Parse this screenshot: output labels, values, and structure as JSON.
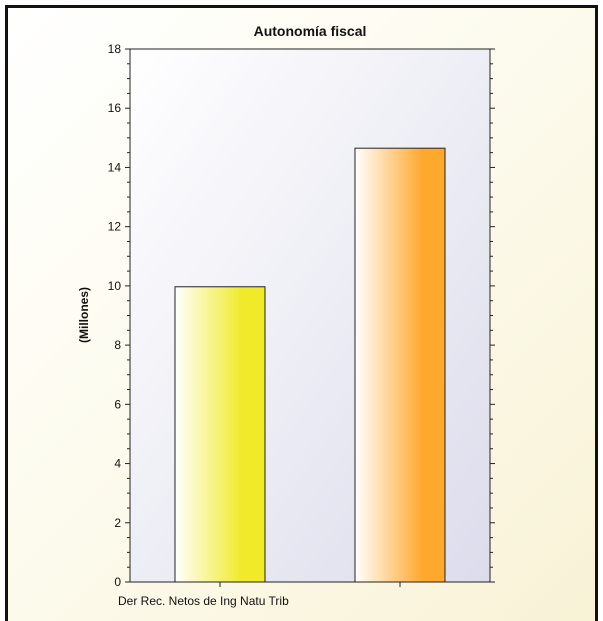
{
  "chart_data": {
    "type": "bar",
    "title": "Autonomía fiscal",
    "xlabel": "",
    "ylabel": "(Millones)",
    "categories": [
      "Der Rec. Netos de Ing Natu Trib",
      ""
    ],
    "values": [
      9.97,
      14.65
    ],
    "bar_colors": [
      "#f0ea28",
      "#ffa82e"
    ],
    "ylim": [
      0,
      18
    ],
    "yticks": [
      0,
      2,
      4,
      6,
      8,
      10,
      12,
      14,
      16,
      18
    ],
    "grid": false,
    "legend": "none"
  }
}
